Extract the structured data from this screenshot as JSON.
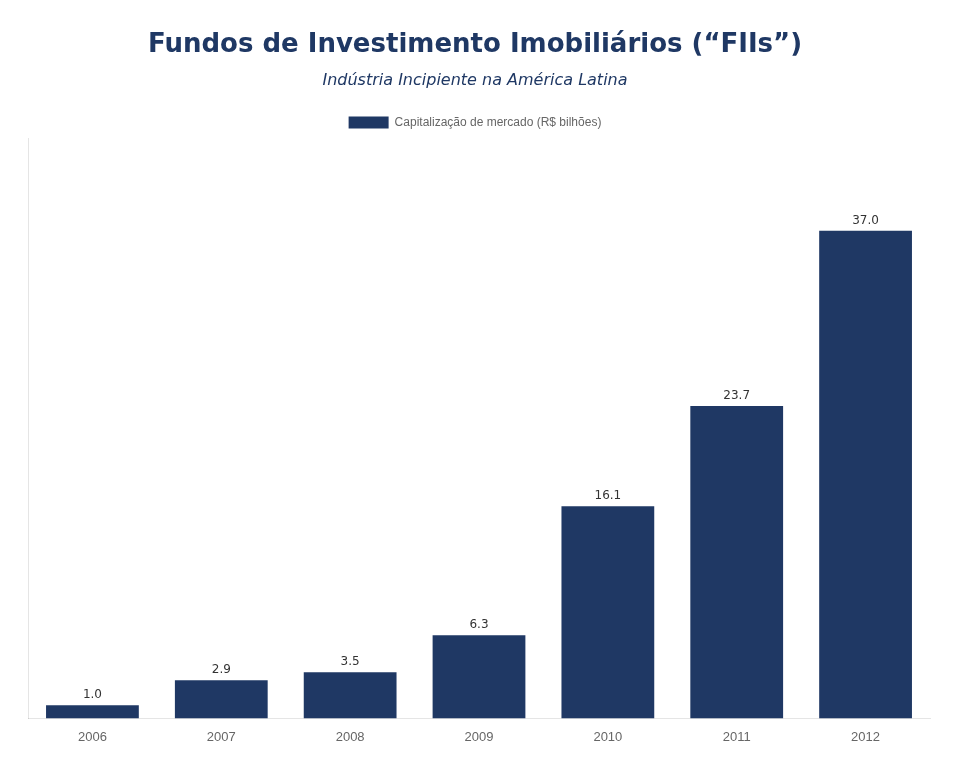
{
  "chart_data": {
    "type": "bar",
    "title": "Fundos de Investimento Imobiliários (“FIIs”)",
    "subtitle": "Indústria Incipiente na América Latina",
    "categories": [
      "2006",
      "2007",
      "2008",
      "2009",
      "2010",
      "2011",
      "2012"
    ],
    "series": [
      {
        "name": "Capitalização de mercado (R$ bilhões)",
        "color": "#1f3864",
        "values": [
          1.0,
          2.9,
          3.5,
          6.3,
          16.1,
          23.7,
          37.0
        ],
        "value_labels": [
          "1.0",
          "2.9",
          "3.5",
          "6.3",
          "16.1",
          "23.7",
          "37.0"
        ]
      }
    ],
    "ylim": [
      0,
      44
    ],
    "yticks": [],
    "tick_labels": "x",
    "grid": false,
    "legend": "top",
    "data_labels": true
  }
}
